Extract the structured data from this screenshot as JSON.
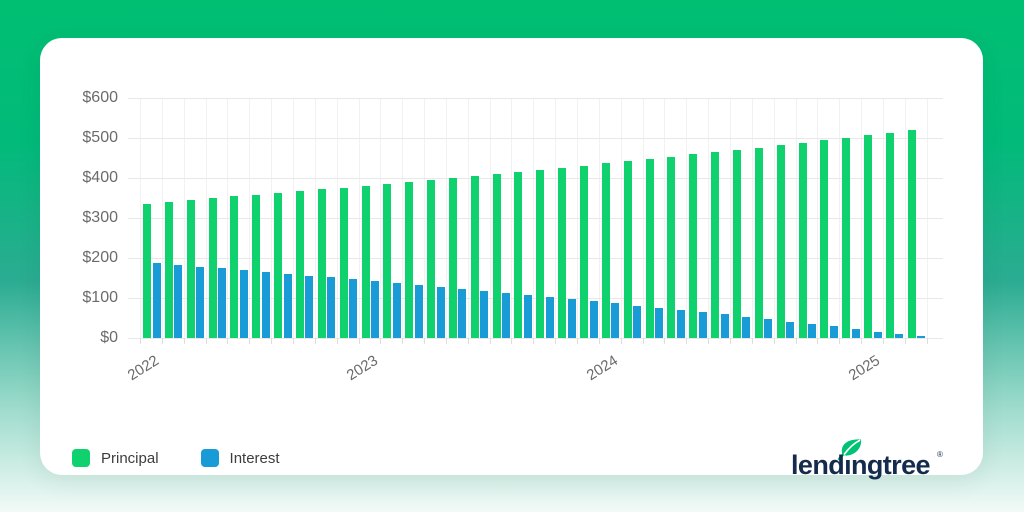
{
  "chart_data": {
    "type": "bar",
    "grouped": true,
    "title": "",
    "xlabel": "",
    "ylabel": "",
    "ylim": [
      0,
      600
    ],
    "y_tick_labels": [
      "$0",
      "$100",
      "$200",
      "$300",
      "$400",
      "$500",
      "$600"
    ],
    "x_tick_labels": [
      "2022",
      "2023",
      "2024",
      "2025"
    ],
    "x_tick_month_indices": [
      0,
      10,
      21,
      33
    ],
    "n_groups": 36,
    "grid": true,
    "legend_position": "bottom-left",
    "series": [
      {
        "name": "Principal",
        "color": "#0FD26E",
        "values": [
          336,
          341,
          345,
          349,
          354,
          358,
          362,
          367,
          372,
          376,
          381,
          386,
          391,
          395,
          400,
          405,
          410,
          416,
          421,
          426,
          431,
          437,
          442,
          448,
          453,
          459,
          465,
          471,
          476,
          482,
          488,
          494,
          501,
          507,
          513,
          520
        ]
      },
      {
        "name": "Interest",
        "color": "#199BD8",
        "values": [
          187,
          183,
          178,
          174,
          170,
          165,
          161,
          156,
          152,
          147,
          143,
          138,
          133,
          128,
          123,
          118,
          113,
          108,
          103,
          97,
          92,
          87,
          81,
          76,
          70,
          65,
          59,
          53,
          47,
          41,
          35,
          29,
          23,
          16,
          10,
          4
        ]
      }
    ]
  },
  "legend": {
    "principal_label": "Principal",
    "interest_label": "Interest"
  },
  "branding": {
    "logo_text": "lendingtree",
    "registered_mark": "®",
    "logo_color": "#142B4D",
    "leaf_color": "#00C274"
  },
  "colors": {
    "principal": "#0FD26E",
    "interest": "#199BD8",
    "bg_gradient_top": "#00BF72",
    "bg_gradient_mid": "#2BAC92",
    "bg_gradient_bottom": "#F2FAF7",
    "card": "#ffffff"
  }
}
